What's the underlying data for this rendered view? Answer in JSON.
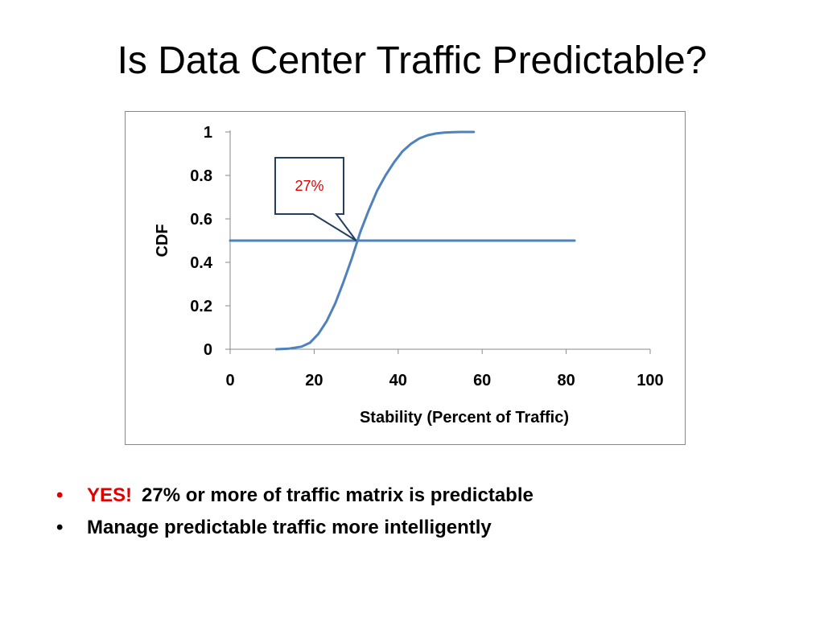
{
  "slide": {
    "title": "Is Data Center Traffic Predictable?"
  },
  "bullets": {
    "marker": "•",
    "items": [
      {
        "highlight": "YES!",
        "text": "27% or more of traffic matrix is predictable",
        "highlight_color": "#e00000"
      },
      {
        "highlight": "",
        "text": "Manage predictable traffic more intelligently"
      }
    ]
  },
  "colors": {
    "series": "#4f81bd",
    "callout_border": "#243f60",
    "callout_text": "#e00000"
  },
  "chart_data": {
    "type": "line",
    "title": "",
    "xlabel": "Stability (Percent of Traffic)",
    "ylabel": "CDF",
    "xlim": [
      0,
      100
    ],
    "ylim": [
      0,
      1
    ],
    "xticks": [
      "0",
      "20",
      "40",
      "60",
      "80",
      "100"
    ],
    "yticks": [
      "0",
      "0.2",
      "0.4",
      "0.6",
      "0.8",
      "1"
    ],
    "grid": false,
    "legend": "none",
    "series": [
      {
        "x": [
          11,
          14,
          17,
          19,
          21,
          23,
          25,
          27,
          29,
          31,
          33,
          35,
          37,
          39,
          41,
          43,
          45,
          47,
          49,
          51,
          53,
          55,
          58
        ],
        "y": [
          0.0,
          0.003,
          0.012,
          0.03,
          0.07,
          0.13,
          0.21,
          0.31,
          0.42,
          0.54,
          0.64,
          0.73,
          0.8,
          0.86,
          0.91,
          0.945,
          0.97,
          0.985,
          0.993,
          0.997,
          0.999,
          1.0,
          1.0
        ]
      },
      {
        "x": [
          0,
          82
        ],
        "y": [
          0.5,
          0.5
        ]
      }
    ],
    "annotations": [
      {
        "text": "27%",
        "x": 30,
        "y": 0.5
      }
    ]
  }
}
